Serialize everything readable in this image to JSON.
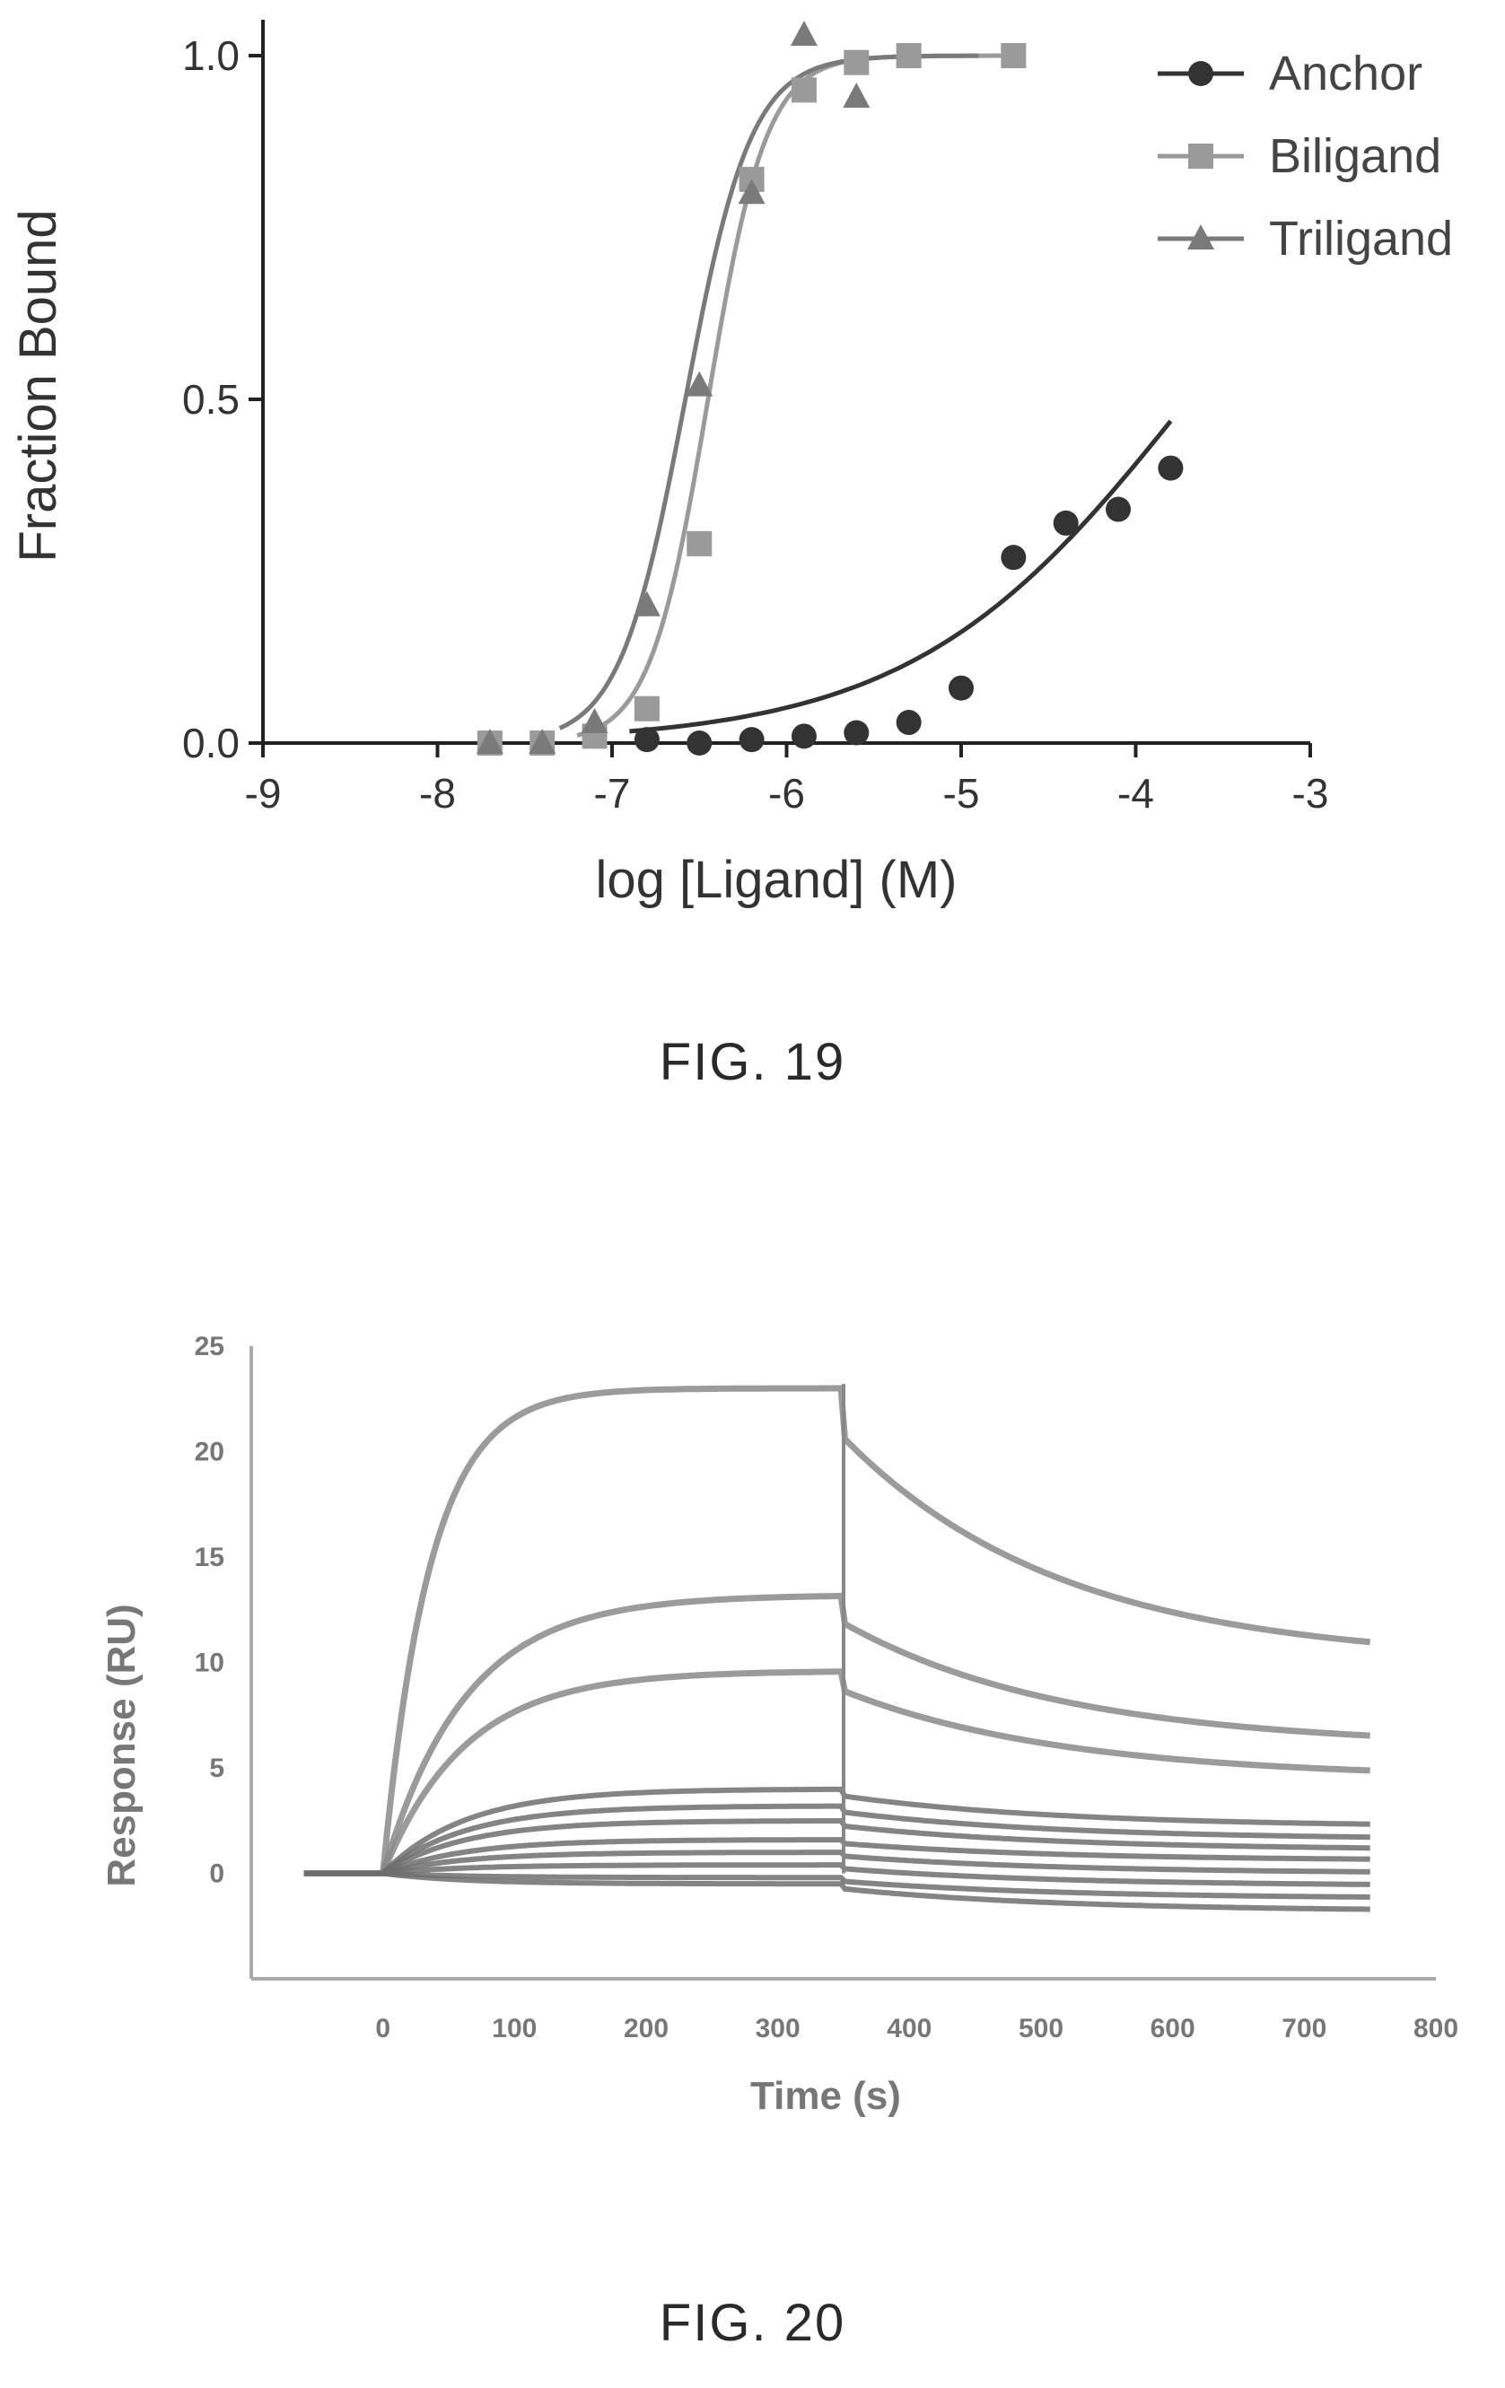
{
  "figures": [
    {
      "caption": "FIG. 19"
    },
    {
      "caption": "FIG. 20"
    }
  ],
  "chart_data": [
    {
      "type": "scatter",
      "title": "",
      "xlabel": "log [Ligand] (M)",
      "ylabel": "Fraction Bound",
      "xlim": [
        -9,
        -3
      ],
      "ylim": [
        0,
        1.0
      ],
      "xticks": [
        "-9",
        "-8",
        "-7",
        "-6",
        "-5",
        "-4",
        "-3"
      ],
      "yticks": [
        "0.0",
        "0.5",
        "1.0"
      ],
      "legend_position": "top-right",
      "grid": false,
      "series": [
        {
          "name": "Anchor",
          "marker": "circle",
          "x": [
            -6.8,
            -6.5,
            -6.2,
            -5.9,
            -5.6,
            -5.3,
            -5.0,
            -4.7,
            -4.4,
            -4.1,
            -3.8
          ],
          "y": [
            0.005,
            0.0,
            0.005,
            0.01,
            0.015,
            0.03,
            0.08,
            0.27,
            0.32,
            0.34,
            0.4
          ],
          "fit": "sigmoid-partial"
        },
        {
          "name": "Biligand",
          "marker": "square",
          "x": [
            -7.7,
            -7.4,
            -7.1,
            -6.8,
            -6.5,
            -6.2,
            -5.9,
            -5.6,
            -5.3,
            -4.7
          ],
          "y": [
            0.0,
            0.0,
            0.01,
            0.05,
            0.29,
            0.82,
            0.95,
            0.99,
            1.0,
            1.0
          ],
          "fit": "sigmoid"
        },
        {
          "name": "Triligand",
          "marker": "triangle",
          "x": [
            -7.7,
            -7.4,
            -7.1,
            -6.8,
            -6.5,
            -6.2,
            -5.9,
            -5.6
          ],
          "y": [
            0.0,
            0.0,
            0.03,
            0.2,
            0.52,
            0.8,
            1.03,
            0.94
          ],
          "fit": "sigmoid"
        }
      ]
    },
    {
      "type": "line",
      "title": "",
      "xlabel": "Time (s)",
      "ylabel": "Response (RU)",
      "xlim": [
        -100,
        800
      ],
      "ylim": [
        -5,
        25
      ],
      "xticks": [
        "0",
        "100",
        "200",
        "300",
        "400",
        "500",
        "600",
        "700",
        "800"
      ],
      "yticks": [
        "0",
        "5",
        "10",
        "15",
        "20",
        "25"
      ],
      "grid": false,
      "injection_end": 350,
      "time_end": 750,
      "time_start": -60,
      "series": [
        {
          "plateau": 23.0,
          "after": 10.0
        },
        {
          "plateau": 13.2,
          "after": 6.0
        },
        {
          "plateau": 9.6,
          "after": 4.5
        },
        {
          "plateau": 4.0,
          "after": 2.2
        },
        {
          "plateau": 3.2,
          "after": 1.6
        },
        {
          "plateau": 2.5,
          "after": 1.1
        },
        {
          "plateau": 1.6,
          "after": 0.6
        },
        {
          "plateau": 1.0,
          "after": 0.0
        },
        {
          "plateau": 0.4,
          "after": -0.6
        },
        {
          "plateau": -0.2,
          "after": -1.2
        },
        {
          "plateau": -0.5,
          "after": -1.8
        }
      ]
    }
  ]
}
